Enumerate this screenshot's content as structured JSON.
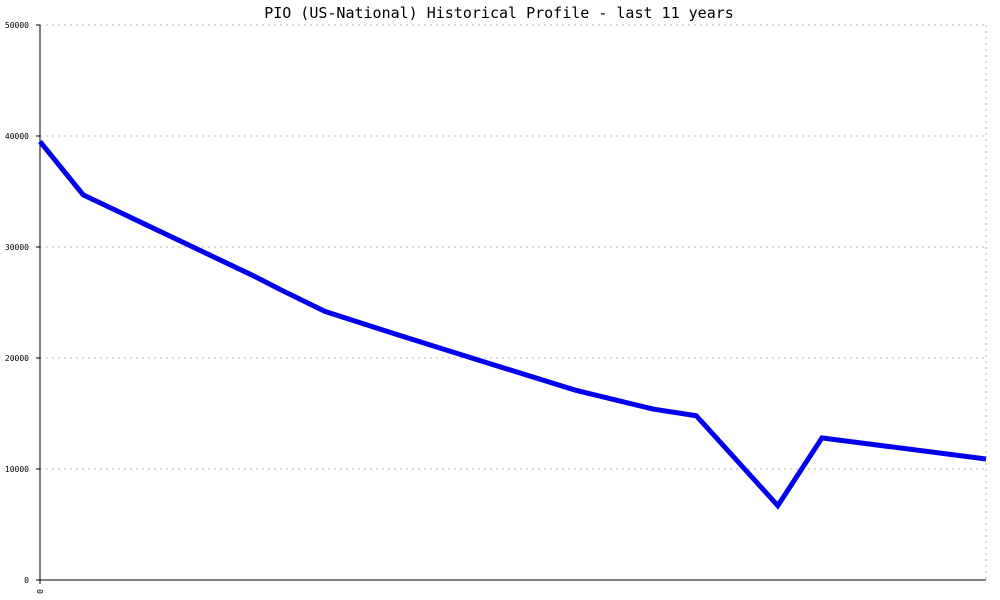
{
  "chart_data": {
    "type": "line",
    "title": "PIO (US-National) Historical Profile - last 11 years",
    "xlabel": "",
    "ylabel": "",
    "ylim": [
      0,
      50000
    ],
    "y_ticks": [
      "0",
      "10000",
      "20000",
      "30000",
      "40000",
      "50000"
    ],
    "x_ticks": [
      "0"
    ],
    "grid": true,
    "legend": "none",
    "line_color": "#0000ee",
    "x": [
      0,
      45,
      225,
      252,
      297,
      369,
      450,
      558,
      639,
      684,
      769,
      815,
      986
    ],
    "series": [
      {
        "values": [
          39500,
          34700,
          27300,
          26100,
          24200,
          22200,
          20000,
          17100,
          15400,
          14800,
          6700,
          12800,
          10900
        ]
      }
    ]
  }
}
